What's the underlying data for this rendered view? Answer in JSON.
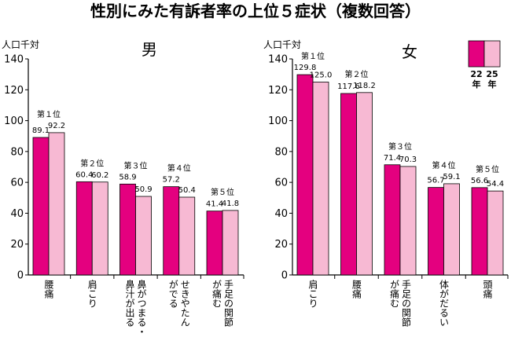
{
  "title": "性別にみた有訴者率の上位５症状（複数回答）",
  "legend": {
    "placement": "top-right",
    "items": [
      {
        "label": "22年",
        "color": "#e4007f"
      },
      {
        "label": "25年",
        "color": "#f7b9d3"
      }
    ]
  },
  "chart_data": [
    {
      "type": "bar",
      "title": "男",
      "ylabel": "人口千対",
      "xlabel": "",
      "ylim": [
        0,
        140
      ],
      "yticks": [
        0,
        20,
        40,
        60,
        80,
        100,
        120,
        140
      ],
      "grid": false,
      "categories": [
        [
          "腰痛"
        ],
        [
          "肩こり"
        ],
        [
          "鼻がつまる・",
          "鼻汁が出る"
        ],
        [
          "せきやたん",
          "がでる"
        ],
        [
          "手足の関節",
          "が痛む"
        ]
      ],
      "ranks": [
        "第１位",
        "第２位",
        "第３位",
        "第４位",
        "第５位"
      ],
      "series": [
        {
          "name": "22年",
          "color": "#e4007f",
          "values": [
            89.1,
            60.4,
            58.9,
            57.2,
            41.4
          ]
        },
        {
          "name": "25年",
          "color": "#f7b9d3",
          "values": [
            92.2,
            60.2,
            50.9,
            50.4,
            41.8
          ]
        }
      ]
    },
    {
      "type": "bar",
      "title": "女",
      "ylabel": "人口千対",
      "xlabel": "",
      "ylim": [
        0,
        140
      ],
      "yticks": [
        0,
        20,
        40,
        60,
        80,
        100,
        120,
        140
      ],
      "grid": false,
      "categories": [
        [
          "肩こり"
        ],
        [
          "腰痛"
        ],
        [
          "手足の関節",
          "が痛む"
        ],
        [
          "体がだるい"
        ],
        [
          "頭痛"
        ]
      ],
      "ranks": [
        "第１位",
        "第２位",
        "第３位",
        "第４位",
        "第５位"
      ],
      "series": [
        {
          "name": "22年",
          "color": "#e4007f",
          "values": [
            129.8,
            117.6,
            71.4,
            56.7,
            56.6
          ]
        },
        {
          "name": "25年",
          "color": "#f7b9d3",
          "values": [
            125.0,
            118.2,
            70.3,
            59.1,
            54.4
          ]
        }
      ]
    }
  ]
}
